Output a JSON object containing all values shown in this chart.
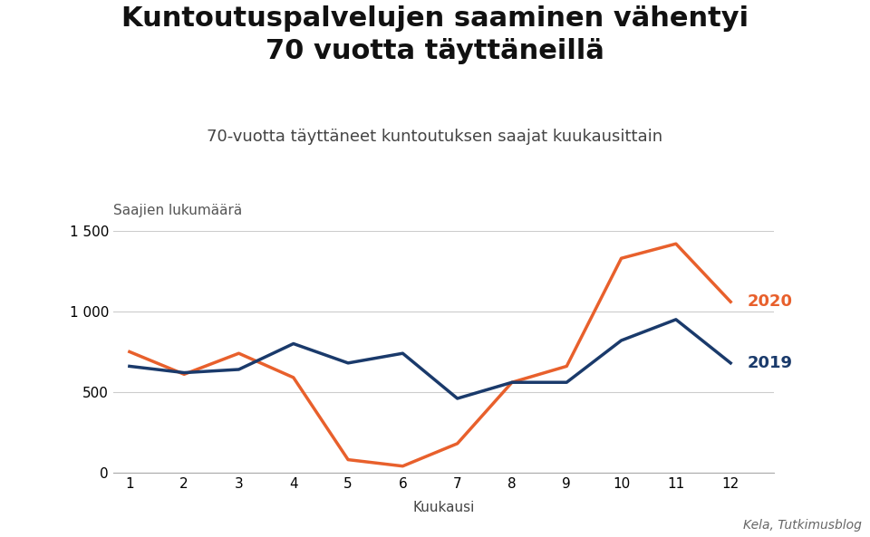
{
  "title": "Kuntoutuspalvelujen saaminen vähentyi\n70 vuotta täyttäneillä",
  "subtitle": "70-vuotta täyttäneet kuntoutuksen saajat kuukausittain",
  "ylabel": "Saajien lukumäärä",
  "xlabel": "Kuukausi",
  "source": "Kela, Tutkimusblog",
  "months": [
    1,
    2,
    3,
    4,
    5,
    6,
    7,
    8,
    9,
    10,
    11,
    12
  ],
  "data_2019": [
    660,
    620,
    640,
    800,
    680,
    740,
    460,
    560,
    560,
    820,
    950,
    680
  ],
  "data_2020": [
    750,
    610,
    740,
    590,
    80,
    40,
    180,
    560,
    660,
    1330,
    1420,
    1060
  ],
  "color_2019": "#1a3a6b",
  "color_2020": "#e8602c",
  "label_2019": "2019",
  "label_2020": "2020",
  "ylim": [
    0,
    1500
  ],
  "yticks": [
    0,
    500,
    1000,
    1500
  ],
  "ytick_labels": [
    "0",
    "500",
    "1 000",
    "1 500"
  ],
  "background_color": "#ffffff",
  "title_fontsize": 22,
  "subtitle_fontsize": 13,
  "axis_label_fontsize": 11,
  "tick_fontsize": 11,
  "source_fontsize": 10,
  "line_label_fontsize": 13,
  "line_width": 2.5
}
